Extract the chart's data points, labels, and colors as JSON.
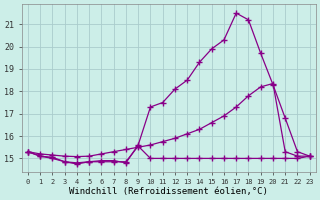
{
  "background_color": "#cceee8",
  "grid_color": "#aacccc",
  "line_color": "#880088",
  "marker": "+",
  "markersize": 4,
  "linewidth": 0.9,
  "xlabel": "Windchill (Refroidissement éolien,°C)",
  "xlabel_fontsize": 6.5,
  "ytick_labels": [
    "15",
    "16",
    "17",
    "18",
    "19",
    "20",
    "21"
  ],
  "ytick_values": [
    15,
    16,
    17,
    18,
    19,
    20,
    21
  ],
  "ylim": [
    14.4,
    21.9
  ],
  "xlim": [
    -0.5,
    23.5
  ],
  "xtick_values": [
    0,
    1,
    2,
    3,
    4,
    5,
    6,
    7,
    8,
    9,
    10,
    11,
    12,
    13,
    14,
    15,
    16,
    17,
    18,
    19,
    20,
    21,
    22,
    23
  ],
  "series1_x": [
    0,
    1,
    2,
    3,
    4,
    5,
    6,
    7,
    8,
    9,
    10,
    11,
    12,
    13,
    14,
    15,
    16,
    17,
    18,
    19,
    20,
    21,
    22,
    23
  ],
  "series1_y": [
    15.3,
    15.1,
    15.05,
    14.85,
    14.8,
    14.85,
    14.9,
    14.9,
    14.8,
    15.6,
    17.3,
    17.5,
    18.1,
    18.5,
    19.3,
    19.9,
    20.3,
    21.5,
    21.2,
    19.7,
    18.3,
    16.8,
    15.3,
    15.1
  ],
  "series2_x": [
    0,
    1,
    2,
    3,
    4,
    5,
    6,
    7,
    8,
    9,
    10,
    11,
    12,
    13,
    14,
    15,
    16,
    17,
    18,
    19,
    20,
    21,
    22,
    23
  ],
  "series2_y": [
    15.3,
    15.2,
    15.15,
    15.1,
    15.08,
    15.1,
    15.2,
    15.3,
    15.4,
    15.5,
    15.6,
    15.75,
    15.9,
    16.1,
    16.3,
    16.6,
    16.9,
    17.3,
    17.8,
    18.2,
    18.35,
    15.3,
    15.1,
    15.1
  ],
  "series3_x": [
    0,
    1,
    2,
    3,
    4,
    5,
    6,
    7,
    8,
    9,
    10,
    11,
    12,
    13,
    14,
    15,
    16,
    17,
    18,
    19,
    20,
    21,
    22,
    23
  ],
  "series3_y": [
    15.3,
    15.1,
    15.0,
    14.85,
    14.75,
    14.85,
    14.85,
    14.85,
    14.85,
    15.55,
    15.0,
    15.0,
    15.0,
    15.0,
    15.0,
    15.0,
    15.0,
    15.0,
    15.0,
    15.0,
    15.0,
    15.0,
    15.0,
    15.1
  ]
}
